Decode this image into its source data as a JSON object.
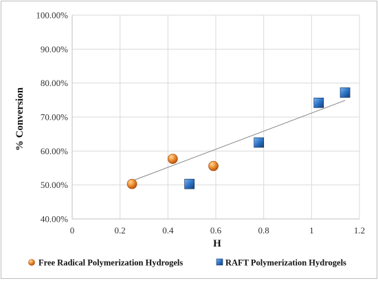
{
  "chart_data": {
    "type": "scatter",
    "xlabel": "H",
    "ylabel": "% Conversion",
    "xlim": [
      0,
      1.2
    ],
    "ylim": [
      0.4,
      1.0
    ],
    "x_ticks": [
      "0",
      "0.2",
      "0.4",
      "0.6",
      "0.8",
      "1",
      "1.2"
    ],
    "y_ticks": [
      "40.00%",
      "50.00%",
      "60.00%",
      "70.00%",
      "80.00%",
      "90.00%",
      "100.00%"
    ],
    "grid": true,
    "legend_position": "bottom",
    "series": [
      {
        "name": "Free Radical Polymerization Hydrogels",
        "marker": "circle",
        "color": "#ed7d31",
        "x": [
          0.25,
          0.42,
          0.59
        ],
        "y": [
          0.503,
          0.577,
          0.556
        ]
      },
      {
        "name": "RAFT Polymerization Hydrogels",
        "marker": "square",
        "color": "#2e75c8",
        "x": [
          0.49,
          0.78,
          1.03,
          1.14
        ],
        "y": [
          0.503,
          0.625,
          0.742,
          0.772
        ]
      }
    ],
    "trendline": {
      "x": [
        0.25,
        1.14
      ],
      "y": [
        0.512,
        0.749
      ],
      "color": "#808080"
    }
  }
}
